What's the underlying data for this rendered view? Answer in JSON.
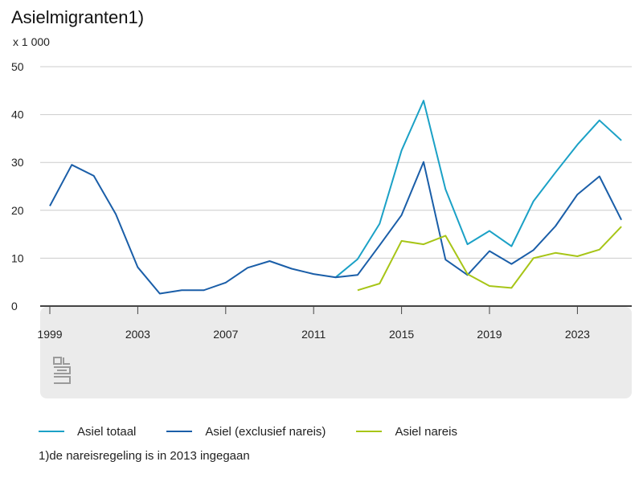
{
  "chart_data": {
    "type": "line",
    "title": "Asielmigranten1)",
    "ylabel": "x 1 000",
    "ylim": [
      0,
      50
    ],
    "yticks": [
      "50",
      "40",
      "30",
      "20",
      "10",
      "0"
    ],
    "xticks": [
      "1999",
      "2003",
      "2007",
      "2011",
      "2015",
      "2019",
      "2023"
    ],
    "x": [
      1999,
      2000,
      2001,
      2002,
      2003,
      2004,
      2005,
      2006,
      2007,
      2008,
      2009,
      2010,
      2011,
      2012,
      2013,
      2014,
      2015,
      2016,
      2017,
      2018,
      2019,
      2020,
      2021,
      2022,
      2023,
      2024,
      2025
    ],
    "series": [
      {
        "name": "Asiel totaal",
        "color": "#1ba1c6",
        "values": [
          null,
          null,
          null,
          null,
          null,
          null,
          null,
          null,
          null,
          null,
          null,
          null,
          null,
          6.0,
          9.8,
          17.2,
          32.5,
          42.9,
          24.4,
          12.9,
          15.7,
          12.5,
          21.9,
          27.9,
          33.7,
          38.8,
          34.6
        ]
      },
      {
        "name": "Asiel (exclusief nareis)",
        "color": "#1a5ea8",
        "values": [
          20.9,
          29.5,
          27.2,
          19.2,
          8.1,
          2.6,
          3.3,
          3.3,
          4.9,
          8.0,
          9.4,
          7.8,
          6.7,
          6.0,
          6.5,
          12.7,
          19.0,
          30.1,
          9.7,
          6.5,
          11.5,
          8.8,
          11.7,
          16.7,
          23.3,
          27.1,
          18.0
        ]
      },
      {
        "name": "Asiel nareis",
        "color": "#a7c517",
        "values": [
          null,
          null,
          null,
          null,
          null,
          null,
          null,
          null,
          null,
          null,
          null,
          null,
          null,
          null,
          3.3,
          4.7,
          13.6,
          12.9,
          14.7,
          6.7,
          4.2,
          3.8,
          10.0,
          11.1,
          10.4,
          11.8,
          16.6
        ]
      }
    ],
    "grid": true,
    "legend": "bottom"
  },
  "footnote": "1)de nareisregeling is in 2013 ingegaan",
  "colors": {
    "grid": "#cccccc",
    "axis": "#444444",
    "panel": "#ebebeb",
    "logo": "#9a9a9a"
  },
  "logo_icon": "cbs-logo-icon"
}
